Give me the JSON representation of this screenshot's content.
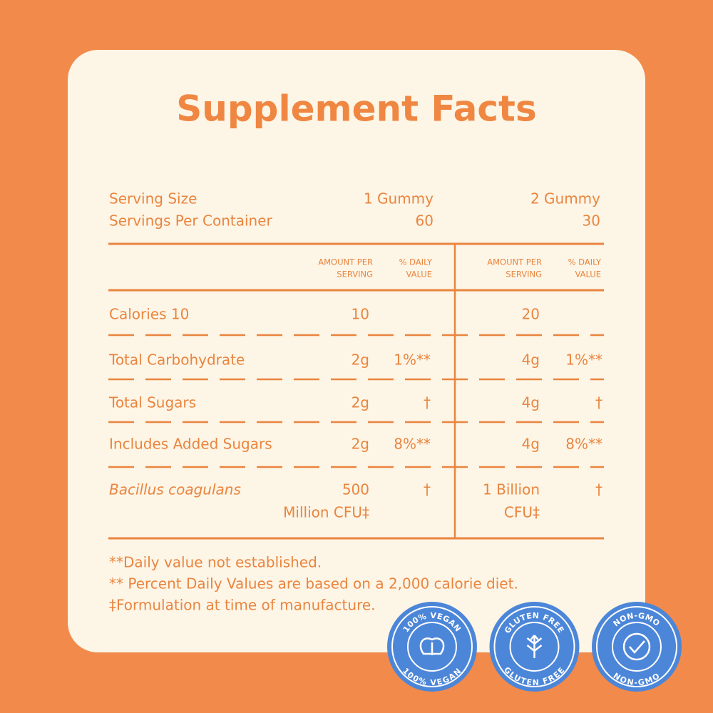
{
  "title": "Supplement Facts",
  "serving": [
    {
      "label": "Serving Size",
      "col_1": "1 Gummy",
      "col_2": "2 Gummy"
    },
    {
      "label": "Servings Per Container",
      "col_1": "60",
      "col_2": "30"
    }
  ],
  "table": {
    "headers": [
      [
        "AMOUNT PER",
        "SERVING"
      ],
      [
        "% DAILY",
        "VALUE"
      ],
      [
        "AMOUNT PER",
        "SERVING"
      ],
      [
        "% DAILY",
        "VALUE"
      ]
    ],
    "rows": [
      {
        "label": "Calories 10",
        "amount_1": [
          "10"
        ],
        "amount_2": [
          "20"
        ]
      },
      {
        "label": "Total Carbohydrate",
        "amount_1": [
          "2g"
        ],
        "dv_1": "1%**",
        "amount_2": [
          "4g"
        ],
        "dv_2": "1%**"
      },
      {
        "label": "Total Sugars",
        "amount_1": [
          "2g"
        ],
        "dv_1": "†",
        "amount_2": [
          "4g"
        ],
        "dv_2": "†"
      },
      {
        "label": "Includes Added Sugars",
        "amount_1": [
          "2g"
        ],
        "dv_1": "8%**",
        "amount_2": [
          "4g"
        ],
        "dv_2": "8%**"
      },
      {
        "label": "Bacillus coagulans",
        "italic": true,
        "amount_1": [
          "500",
          "Million CFU‡"
        ],
        "dv_1": "†",
        "amount_2": [
          "1 Billion",
          "CFU‡"
        ],
        "dv_2": "†"
      }
    ]
  },
  "footnotes": [
    "**Daily value not established.",
    "** Percent Daily Values are based on a 2,000 calorie diet.",
    "‡Formulation at time of manufacture."
  ],
  "badges": [
    {
      "top": "100% VEGAN",
      "bottom": "100% VEGAN"
    },
    {
      "top": "GLUTEN FREE",
      "bottom": "GLUTEN FREE"
    },
    {
      "top": "NON-GMO",
      "bottom": "NON-GMO"
    }
  ]
}
